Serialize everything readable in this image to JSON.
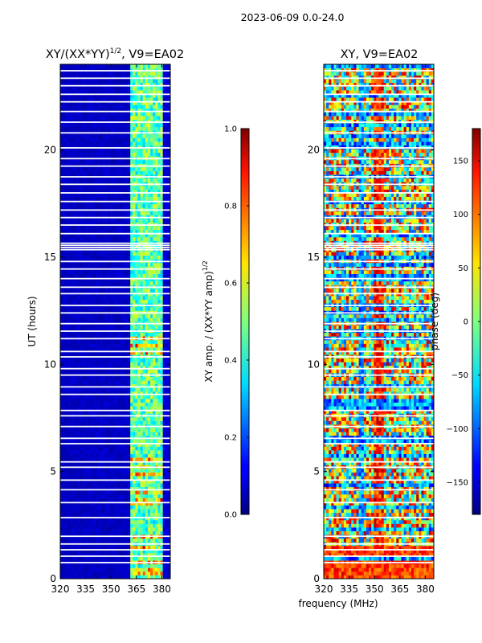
{
  "chart_data": {
    "suptitle": "2023-06-09 0.0-24.0",
    "xlabel_shared": "frequency (MHz)",
    "panels": [
      {
        "type": "heatmap",
        "title_main": "XY/(XX*YY)",
        "title_sup": "1/2",
        "title_rest": ", V9=EA02",
        "ylabel": "UT (hours)",
        "xlim": [
          320,
          385
        ],
        "ylim": [
          0,
          24
        ],
        "xticks": [
          320,
          335,
          350,
          365,
          380
        ],
        "xtick_labels": [
          "320",
          "335",
          "350",
          "365",
          "380"
        ],
        "yticks": [
          0,
          5,
          10,
          15,
          20
        ],
        "ytick_labels": [
          "0",
          "5",
          "10",
          "15",
          "20"
        ],
        "colorbar": {
          "label_main": "XY amp. / (XX*YY amp)",
          "label_sup": "1/2",
          "range": [
            0.0,
            1.0
          ],
          "ticks": [
            0.0,
            0.2,
            0.4,
            0.6,
            0.8,
            1.0
          ],
          "tick_labels": [
            "0.0",
            "0.2",
            "0.4",
            "0.6",
            "0.8",
            "1.0"
          ]
        },
        "description_of_field": "low (~0.05) amplitude below 361 MHz; high amplitude (0.3-0.9) between 361 and 380 MHz"
      },
      {
        "type": "heatmap",
        "title_main": "XY, V9=EA02",
        "ylabel": "",
        "xlim": [
          320,
          385
        ],
        "ylim": [
          0,
          24
        ],
        "xticks": [
          320,
          335,
          350,
          365,
          380
        ],
        "xtick_labels": [
          "320",
          "335",
          "350",
          "365",
          "380"
        ],
        "yticks": [
          0,
          5,
          10,
          15,
          20
        ],
        "ytick_labels": [
          "0",
          "5",
          "10",
          "15",
          "20"
        ],
        "colorbar": {
          "label_main": "phase (deg)",
          "range": [
            -180,
            180
          ],
          "ticks": [
            -150,
            -100,
            -50,
            0,
            50,
            100,
            150
          ],
          "tick_labels": [
            "−150",
            "−100",
            "−50",
            "0",
            "50",
            "100",
            "150"
          ]
        },
        "description_of_field": "noisy phase; vertical high-phase stripes near 349-355 MHz; strongly positive phase below ~1.5 UT"
      }
    ],
    "flagged_hours": [
      0.75,
      1.05,
      1.35,
      1.62,
      1.98,
      2.85,
      3.55,
      4.15,
      4.6,
      5.2,
      5.45,
      6.3,
      6.55,
      7.1,
      7.6,
      7.85,
      8.6,
      8.95,
      9.5,
      9.8,
      10.35,
      10.6,
      11.2,
      11.55,
      11.9,
      12.4,
      12.75,
      13.3,
      13.6,
      14.0,
      14.45,
      14.8,
      15.35,
      15.45,
      15.55,
      15.65,
      16.1,
      16.5,
      16.85,
      17.2,
      17.6,
      18.0,
      18.4,
      18.75,
      19.25,
      19.6,
      20.1,
      20.8,
      21.3,
      21.8,
      22.25,
      22.6,
      23.0,
      23.35,
      23.7
    ]
  }
}
